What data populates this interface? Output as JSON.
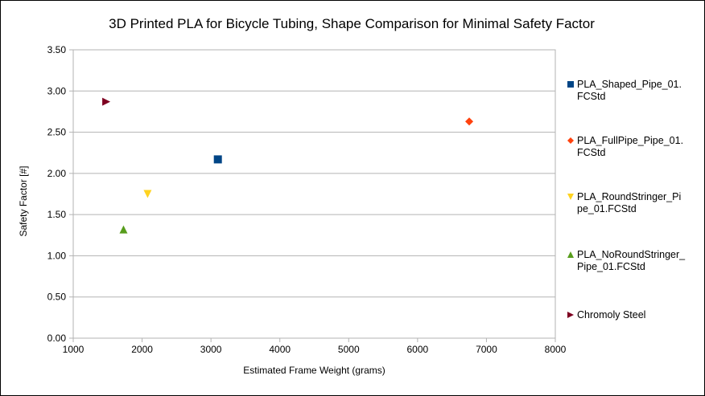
{
  "chart_data": {
    "type": "scatter",
    "title": "3D Printed PLA for Bicycle Tubing, Shape Comparison for Minimal Safety Factor",
    "xlabel": "Estimated Frame Weight (grams)",
    "ylabel": "Safety Factor [#]",
    "xlim": [
      1000,
      8000
    ],
    "ylim": [
      0,
      3.5
    ],
    "x_ticks": [
      "1000",
      "2000",
      "3000",
      "4000",
      "5000",
      "6000",
      "7000",
      "8000"
    ],
    "y_ticks": [
      "0.00",
      "0.50",
      "1.00",
      "1.50",
      "2.00",
      "2.50",
      "3.00",
      "3.50"
    ],
    "grid": "horizontal",
    "legend_position": "right",
    "series": [
      {
        "name": "PLA_Shaped_Pipe_01.FCStd",
        "legend_lines": [
          "PLA_Shaped_Pipe_01.",
          "FCStd"
        ],
        "marker": "square",
        "color": "#004586",
        "points": [
          {
            "x": 3100,
            "y": 2.17
          }
        ]
      },
      {
        "name": "PLA_FullPipe_Pipe_01.FCStd",
        "legend_lines": [
          "PLA_FullPipe_Pipe_01.",
          "FCStd"
        ],
        "marker": "diamond",
        "color": "#ff420e",
        "points": [
          {
            "x": 6750,
            "y": 2.63
          }
        ]
      },
      {
        "name": "PLA_RoundStringer_Pipe_01.FCStd",
        "legend_lines": [
          "PLA_RoundStringer_Pi",
          "pe_01.FCStd"
        ],
        "marker": "triangle-down",
        "color": "#ffd320",
        "points": [
          {
            "x": 2080,
            "y": 1.75
          }
        ]
      },
      {
        "name": "PLA_NoRoundStringer_Pipe_01.FCStd",
        "legend_lines": [
          "PLA_NoRoundStringer_",
          "Pipe_01.FCStd"
        ],
        "marker": "triangle-up",
        "color": "#579d1c",
        "points": [
          {
            "x": 1730,
            "y": 1.32
          }
        ]
      },
      {
        "name": "Chromoly Steel",
        "legend_lines": [
          "Chromoly Steel"
        ],
        "marker": "triangle-right",
        "color": "#7e0021",
        "points": [
          {
            "x": 1480,
            "y": 2.87
          }
        ]
      }
    ]
  }
}
